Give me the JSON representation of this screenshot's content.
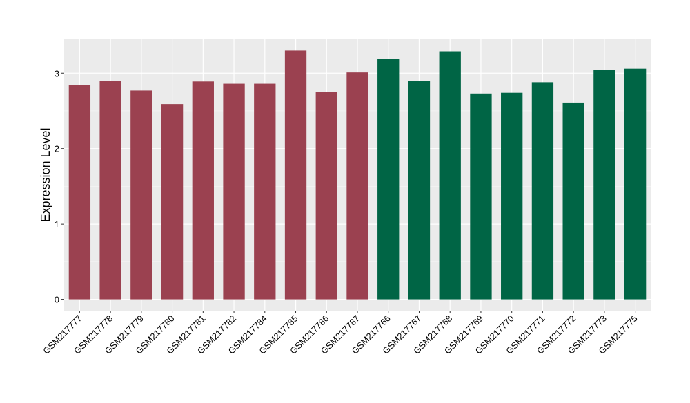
{
  "chart_data": {
    "type": "bar",
    "title": "",
    "xlabel": "",
    "ylabel": "Expression Level",
    "ylim": [
      -0.15,
      3.45
    ],
    "yticks": [
      0,
      1,
      2,
      3
    ],
    "grid": true,
    "legend": "none",
    "panel_color": "#ebebeb",
    "categories": [
      "GSM217777",
      "GSM217778",
      "GSM217779",
      "GSM217780",
      "GSM217781",
      "GSM217782",
      "GSM217784",
      "GSM217785",
      "GSM217786",
      "GSM217787",
      "GSM217766",
      "GSM217767",
      "GSM217768",
      "GSM217769",
      "GSM217770",
      "GSM217771",
      "GSM217772",
      "GSM217773",
      "GSM217775"
    ],
    "values": [
      2.84,
      2.9,
      2.77,
      2.59,
      2.89,
      2.86,
      2.86,
      3.3,
      2.75,
      3.01,
      3.19,
      2.9,
      3.29,
      2.73,
      2.74,
      2.88,
      2.61,
      3.04,
      3.06
    ],
    "colors": [
      "#9b4150",
      "#9b4150",
      "#9b4150",
      "#9b4150",
      "#9b4150",
      "#9b4150",
      "#9b4150",
      "#9b4150",
      "#9b4150",
      "#9b4150",
      "#006545",
      "#006545",
      "#006545",
      "#006545",
      "#006545",
      "#006545",
      "#006545",
      "#006545",
      "#006545"
    ]
  }
}
